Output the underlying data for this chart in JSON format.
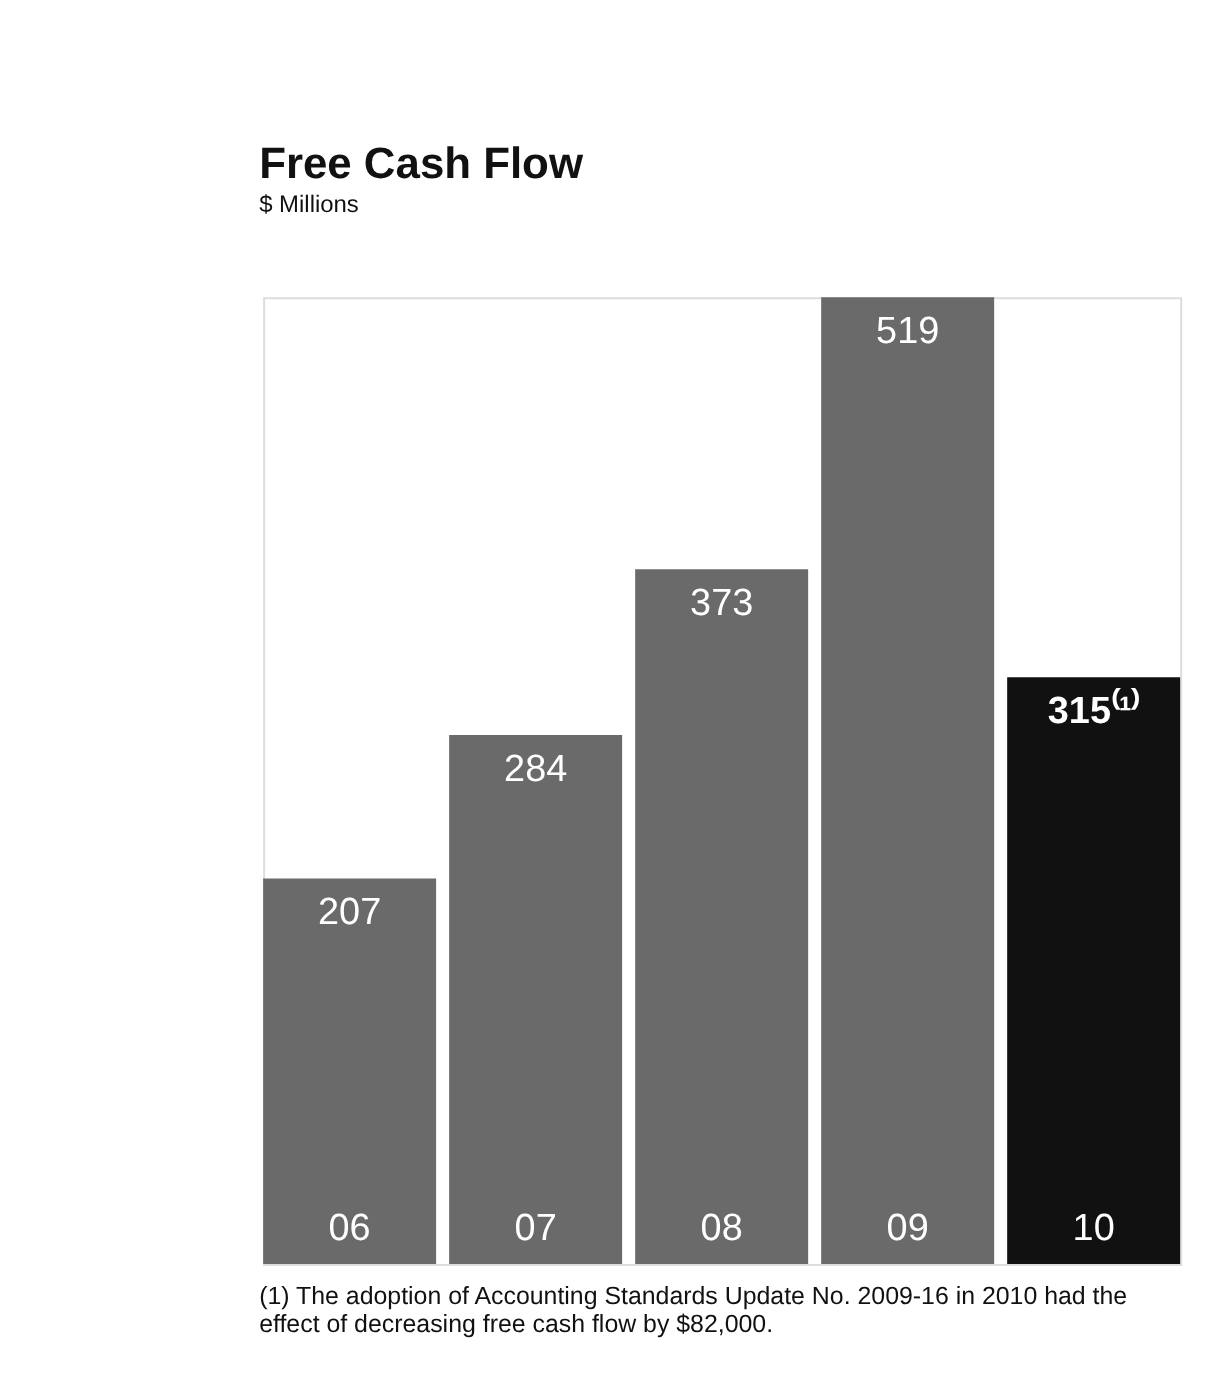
{
  "chart_data": {
    "type": "bar",
    "title": "Free Cash Flow",
    "subtitle": "$ Millions",
    "categories": [
      "06",
      "07",
      "08",
      "09",
      "10"
    ],
    "values": [
      207,
      284,
      373,
      519,
      315
    ],
    "colors": [
      "#6a6a6a",
      "#6a6a6a",
      "#6a6a6a",
      "#6a6a6a",
      "#111111"
    ],
    "value_labels": [
      "207",
      "284",
      "373",
      "519",
      "315⁽¹⁾"
    ],
    "annotations": [
      "(1) The adoption of Accounting Standards Update No. 2009-16 in 2010 had the effect of decreasing free cash flow by $82,000."
    ],
    "grid": false
  }
}
